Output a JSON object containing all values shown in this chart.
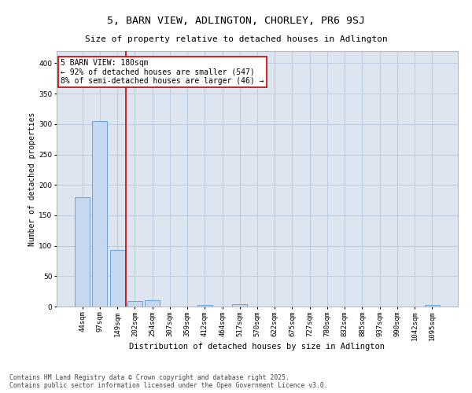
{
  "title": "5, BARN VIEW, ADLINGTON, CHORLEY, PR6 9SJ",
  "subtitle": "Size of property relative to detached houses in Adlington",
  "xlabel": "Distribution of detached houses by size in Adlington",
  "ylabel": "Number of detached properties",
  "categories": [
    "44sqm",
    "97sqm",
    "149sqm",
    "202sqm",
    "254sqm",
    "307sqm",
    "359sqm",
    "412sqm",
    "464sqm",
    "517sqm",
    "570sqm",
    "622sqm",
    "675sqm",
    "727sqm",
    "780sqm",
    "832sqm",
    "885sqm",
    "937sqm",
    "990sqm",
    "1042sqm",
    "1095sqm"
  ],
  "values": [
    180,
    305,
    93,
    9,
    10,
    0,
    0,
    3,
    0,
    4,
    0,
    0,
    0,
    0,
    0,
    0,
    0,
    0,
    0,
    0,
    3
  ],
  "bar_color": "#c5d8f0",
  "bar_edge_color": "#5b9bd5",
  "vline_x_idx": 3,
  "vline_color": "#cc0000",
  "annotation_text": "5 BARN VIEW: 180sqm\n← 92% of detached houses are smaller (547)\n8% of semi-detached houses are larger (46) →",
  "annotation_box_color": "#ffffff",
  "annotation_box_edge": "#cc0000",
  "ylim": [
    0,
    420
  ],
  "yticks": [
    0,
    50,
    100,
    150,
    200,
    250,
    300,
    350,
    400
  ],
  "background_color": "#ffffff",
  "plot_bg_color": "#dde6f0",
  "grid_color": "#b8c8dc",
  "footer_line1": "Contains HM Land Registry data © Crown copyright and database right 2025.",
  "footer_line2": "Contains public sector information licensed under the Open Government Licence v3.0.",
  "title_fontsize": 9.5,
  "subtitle_fontsize": 8,
  "xlabel_fontsize": 7.5,
  "ylabel_fontsize": 7,
  "tick_fontsize": 6.5,
  "annotation_fontsize": 7,
  "footer_fontsize": 5.8
}
